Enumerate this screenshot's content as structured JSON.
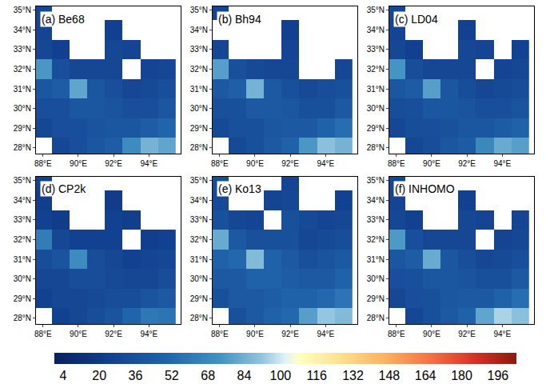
{
  "chart_data": [
    {
      "type": "heatmap",
      "title": "(a) Be68",
      "x": [
        88,
        89,
        90,
        91,
        92,
        93,
        94,
        95
      ],
      "y": [
        28,
        29,
        30,
        31,
        32,
        33,
        34,
        35
      ],
      "z": [
        [
          null,
          30,
          35,
          40,
          45,
          70,
          85,
          80
        ],
        [
          30,
          35,
          35,
          38,
          40,
          40,
          45,
          50
        ],
        [
          35,
          35,
          40,
          40,
          38,
          35,
          35,
          40
        ],
        [
          40,
          45,
          80,
          40,
          35,
          30,
          32,
          35
        ],
        [
          75,
          35,
          30,
          30,
          30,
          null,
          28,
          30
        ],
        [
          30,
          25,
          null,
          null,
          30,
          28,
          null,
          null
        ],
        [
          28,
          null,
          null,
          null,
          25,
          null,
          null,
          null
        ],
        [
          30,
          null,
          null,
          null,
          null,
          null,
          null,
          null
        ]
      ],
      "xlim": [
        87.6,
        95.8
      ],
      "ylim": [
        27.7,
        35.2
      ],
      "xticks": [
        {
          "value": 88,
          "label": "88°E"
        },
        {
          "value": 90,
          "label": "90°E"
        },
        {
          "value": 92,
          "label": "92°E"
        },
        {
          "value": 94,
          "label": "94°E"
        }
      ],
      "yticks": [
        {
          "value": 28,
          "label": "28°N"
        },
        {
          "value": 29,
          "label": "29°N"
        },
        {
          "value": 30,
          "label": "30°N"
        },
        {
          "value": 31,
          "label": "31°N"
        },
        {
          "value": 32,
          "label": "32°N"
        },
        {
          "value": 33,
          "label": "33°N"
        },
        {
          "value": 34,
          "label": "34°N"
        },
        {
          "value": 35,
          "label": "35°N"
        }
      ]
    },
    {
      "type": "heatmap",
      "title": "(b) Bh94",
      "x": [
        88,
        89,
        90,
        91,
        92,
        93,
        94,
        95
      ],
      "y": [
        28,
        29,
        30,
        31,
        32,
        33,
        34,
        35
      ],
      "z": [
        [
          null,
          32,
          36,
          42,
          48,
          75,
          90,
          85
        ],
        [
          32,
          36,
          36,
          40,
          42,
          42,
          48,
          55
        ],
        [
          36,
          36,
          42,
          42,
          40,
          36,
          36,
          42
        ],
        [
          42,
          46,
          85,
          42,
          36,
          32,
          34,
          36
        ],
        [
          78,
          36,
          32,
          30,
          30,
          null,
          null,
          30
        ],
        [
          30,
          null,
          null,
          null,
          28,
          null,
          null,
          null
        ],
        [
          null,
          null,
          null,
          null,
          25,
          null,
          null,
          null
        ],
        [
          28,
          null,
          null,
          null,
          null,
          null,
          null,
          null
        ]
      ],
      "xlim": [
        87.6,
        95.8
      ],
      "ylim": [
        27.7,
        35.2
      ],
      "xticks": [
        {
          "value": 88,
          "label": "88°E"
        },
        {
          "value": 90,
          "label": "90°E"
        },
        {
          "value": 92,
          "label": "92°E"
        },
        {
          "value": 94,
          "label": "94°E"
        }
      ],
      "yticks": [
        {
          "value": 28,
          "label": "28°N"
        },
        {
          "value": 29,
          "label": "29°N"
        },
        {
          "value": 30,
          "label": "30°N"
        },
        {
          "value": 31,
          "label": "31°N"
        },
        {
          "value": 32,
          "label": "32°N"
        },
        {
          "value": 33,
          "label": "33°N"
        },
        {
          "value": 34,
          "label": "34°N"
        },
        {
          "value": 35,
          "label": "35°N"
        }
      ]
    },
    {
      "type": "heatmap",
      "title": "(c) LD04",
      "x": [
        88,
        89,
        90,
        91,
        92,
        93,
        94,
        95
      ],
      "y": [
        28,
        29,
        30,
        31,
        32,
        33,
        34,
        35
      ],
      "z": [
        [
          null,
          30,
          34,
          40,
          44,
          68,
          82,
          78
        ],
        [
          30,
          34,
          35,
          37,
          40,
          40,
          44,
          48
        ],
        [
          34,
          35,
          40,
          40,
          38,
          35,
          35,
          38
        ],
        [
          40,
          44,
          78,
          40,
          34,
          30,
          32,
          34
        ],
        [
          74,
          34,
          30,
          30,
          30,
          null,
          28,
          30
        ],
        [
          30,
          25,
          null,
          null,
          30,
          28,
          null,
          26
        ],
        [
          28,
          null,
          null,
          null,
          26,
          null,
          null,
          null
        ],
        [
          30,
          null,
          null,
          null,
          null,
          null,
          null,
          null
        ]
      ],
      "xlim": [
        87.6,
        95.8
      ],
      "ylim": [
        27.7,
        35.2
      ],
      "xticks": [
        {
          "value": 88,
          "label": "88°E"
        },
        {
          "value": 90,
          "label": "90°E"
        },
        {
          "value": 92,
          "label": "92°E"
        },
        {
          "value": 94,
          "label": "94°E"
        }
      ],
      "yticks": [
        {
          "value": 28,
          "label": "28°N"
        },
        {
          "value": 29,
          "label": "29°N"
        },
        {
          "value": 30,
          "label": "30°N"
        },
        {
          "value": 31,
          "label": "31°N"
        },
        {
          "value": 32,
          "label": "32°N"
        },
        {
          "value": 33,
          "label": "33°N"
        },
        {
          "value": 34,
          "label": "34°N"
        },
        {
          "value": 35,
          "label": "35°N"
        }
      ]
    },
    {
      "type": "heatmap",
      "title": "(d) CP2k",
      "x": [
        88,
        89,
        90,
        91,
        92,
        93,
        94,
        95
      ],
      "y": [
        28,
        29,
        30,
        31,
        32,
        33,
        34,
        35
      ],
      "z": [
        [
          null,
          26,
          30,
          34,
          38,
          50,
          60,
          58
        ],
        [
          26,
          30,
          30,
          32,
          34,
          34,
          38,
          42
        ],
        [
          30,
          30,
          34,
          34,
          32,
          30,
          30,
          34
        ],
        [
          34,
          38,
          70,
          34,
          30,
          26,
          28,
          30
        ],
        [
          62,
          30,
          26,
          26,
          26,
          null,
          24,
          26
        ],
        [
          26,
          22,
          null,
          null,
          26,
          24,
          null,
          null
        ],
        [
          24,
          null,
          null,
          null,
          22,
          null,
          null,
          null
        ],
        [
          26,
          null,
          null,
          null,
          null,
          null,
          null,
          null
        ]
      ],
      "xlim": [
        87.6,
        95.8
      ],
      "ylim": [
        27.7,
        35.2
      ],
      "xticks": [
        {
          "value": 88,
          "label": "88°E"
        },
        {
          "value": 90,
          "label": "90°E"
        },
        {
          "value": 92,
          "label": "92°E"
        },
        {
          "value": 94,
          "label": "94°E"
        }
      ],
      "yticks": [
        {
          "value": 28,
          "label": "28°N"
        },
        {
          "value": 29,
          "label": "29°N"
        },
        {
          "value": 30,
          "label": "30°N"
        },
        {
          "value": 31,
          "label": "31°N"
        },
        {
          "value": 32,
          "label": "32°N"
        },
        {
          "value": 33,
          "label": "33°N"
        },
        {
          "value": 34,
          "label": "34°N"
        },
        {
          "value": 35,
          "label": "35°N"
        }
      ]
    },
    {
      "type": "heatmap",
      "title": "(e) Ko13",
      "x": [
        88,
        89,
        90,
        91,
        92,
        93,
        94,
        95
      ],
      "y": [
        28,
        29,
        30,
        31,
        32,
        33,
        34,
        35
      ],
      "z": [
        [
          null,
          36,
          42,
          48,
          52,
          78,
          92,
          88
        ],
        [
          36,
          42,
          42,
          45,
          48,
          48,
          52,
          58
        ],
        [
          42,
          42,
          48,
          48,
          45,
          42,
          42,
          48
        ],
        [
          48,
          52,
          88,
          48,
          42,
          36,
          38,
          42
        ],
        [
          82,
          42,
          36,
          36,
          36,
          30,
          32,
          34
        ],
        [
          36,
          30,
          28,
          null,
          36,
          32,
          28,
          30
        ],
        [
          32,
          null,
          null,
          28,
          30,
          null,
          null,
          26
        ],
        [
          34,
          null,
          null,
          null,
          28,
          null,
          null,
          null
        ]
      ],
      "xlim": [
        87.6,
        95.8
      ],
      "ylim": [
        27.7,
        35.2
      ],
      "xticks": [
        {
          "value": 88,
          "label": "88°E"
        },
        {
          "value": 90,
          "label": "90°E"
        },
        {
          "value": 92,
          "label": "92°E"
        },
        {
          "value": 94,
          "label": "94°E"
        }
      ],
      "yticks": [
        {
          "value": 28,
          "label": "28°N"
        },
        {
          "value": 29,
          "label": "29°N"
        },
        {
          "value": 30,
          "label": "30°N"
        },
        {
          "value": 31,
          "label": "31°N"
        },
        {
          "value": 32,
          "label": "32°N"
        },
        {
          "value": 33,
          "label": "33°N"
        },
        {
          "value": 34,
          "label": "34°N"
        },
        {
          "value": 35,
          "label": "35°N"
        }
      ]
    },
    {
      "type": "heatmap",
      "title": "(f) INHOMO",
      "x": [
        88,
        89,
        90,
        91,
        92,
        93,
        94,
        95
      ],
      "y": [
        28,
        29,
        30,
        31,
        32,
        33,
        34,
        35
      ],
      "z": [
        [
          null,
          30,
          36,
          42,
          48,
          80,
          95,
          90
        ],
        [
          30,
          35,
          36,
          40,
          42,
          42,
          48,
          55
        ],
        [
          35,
          36,
          40,
          40,
          38,
          36,
          36,
          42
        ],
        [
          40,
          45,
          82,
          40,
          35,
          30,
          32,
          35
        ],
        [
          76,
          35,
          30,
          30,
          30,
          null,
          28,
          30
        ],
        [
          30,
          26,
          null,
          null,
          30,
          28,
          null,
          28
        ],
        [
          28,
          null,
          null,
          null,
          26,
          null,
          null,
          null
        ],
        [
          30,
          null,
          null,
          null,
          null,
          null,
          null,
          null
        ]
      ],
      "xlim": [
        87.6,
        95.8
      ],
      "ylim": [
        27.7,
        35.2
      ],
      "xticks": [
        {
          "value": 88,
          "label": "88°E"
        },
        {
          "value": 90,
          "label": "90°E"
        },
        {
          "value": 92,
          "label": "92°E"
        },
        {
          "value": 94,
          "label": "94°E"
        }
      ],
      "yticks": [
        {
          "value": 28,
          "label": "28°N"
        },
        {
          "value": 29,
          "label": "29°N"
        },
        {
          "value": 30,
          "label": "30°N"
        },
        {
          "value": 31,
          "label": "31°N"
        },
        {
          "value": 32,
          "label": "32°N"
        },
        {
          "value": 33,
          "label": "33°N"
        },
        {
          "value": 34,
          "label": "34°N"
        },
        {
          "value": 35,
          "label": "35°N"
        }
      ]
    }
  ],
  "colorbar": {
    "range": [
      0,
      204
    ],
    "ticks": [
      4,
      20,
      36,
      52,
      68,
      84,
      100,
      116,
      132,
      148,
      164,
      180,
      196
    ]
  }
}
